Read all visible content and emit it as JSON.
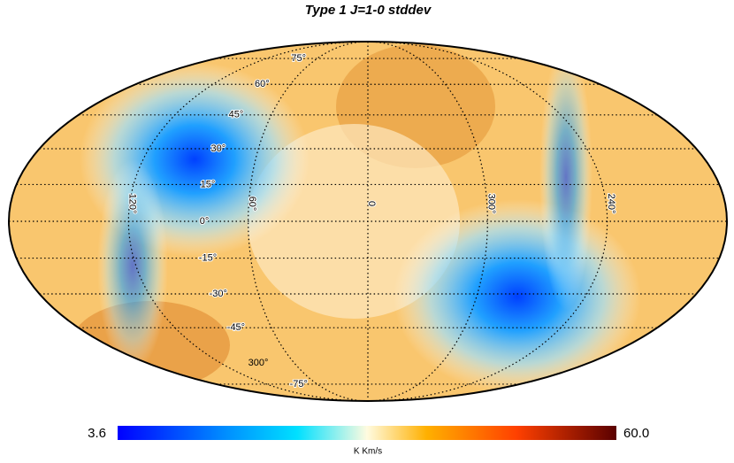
{
  "title": "Type 1 J=1-0 stddev",
  "colorbar": {
    "min_label": "3.6",
    "max_label": "60.0",
    "unit": "K Km/s"
  },
  "graticule": {
    "parallels": [
      {
        "value": 75,
        "label": "75°"
      },
      {
        "value": 60,
        "label": "60°"
      },
      {
        "value": 45,
        "label": "45°"
      },
      {
        "value": 30,
        "label": "30°"
      },
      {
        "value": 15,
        "label": "15°"
      },
      {
        "value": 0,
        "label": "0°"
      },
      {
        "value": -15,
        "label": "-15°"
      },
      {
        "value": -30,
        "label": "-30°"
      },
      {
        "value": -45,
        "label": "-45°"
      },
      {
        "value": -75,
        "label": "-75°"
      }
    ],
    "meridians": [
      {
        "value": 120,
        "label": "120°"
      },
      {
        "value": 60,
        "label": "60°"
      },
      {
        "value": 0,
        "label": "0"
      },
      {
        "value": 300,
        "label": "300°"
      },
      {
        "value": 240,
        "label": "240°"
      }
    ],
    "extra_label": "300°"
  }
}
